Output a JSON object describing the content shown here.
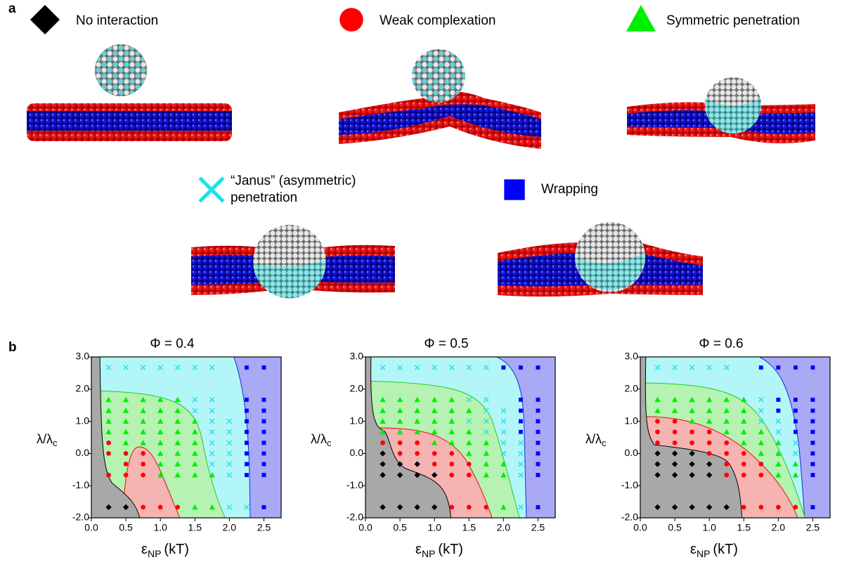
{
  "panel_labels": [
    "a",
    "b"
  ],
  "legend": [
    {
      "label": "No interaction",
      "marker": "diamond",
      "color": "#000000"
    },
    {
      "label": "Weak complexation",
      "marker": "circle",
      "color": "#ff0000"
    },
    {
      "label": "Symmetric penetration",
      "marker": "triangle",
      "color": "#00ee00"
    },
    {
      "label": "“Janus” (asymmetric) penetration",
      "marker": "x",
      "color": "#22e0e8"
    },
    {
      "label": "Wrapping",
      "marker": "square",
      "color": "#0000ff"
    }
  ],
  "chart_data": [
    {
      "type": "scatter",
      "title": "Φ = 0.4",
      "xlabel": {
        "symbol": "ε",
        "subscript": "NP",
        "unit": "(kT)"
      },
      "ylabel": {
        "symbol": "λ/λ",
        "subscript": "c"
      },
      "xlim": [
        0,
        2.75
      ],
      "ylim": [
        -2,
        3
      ],
      "xticks": [
        {
          "value": 0,
          "label": "0.0"
        },
        0.5,
        {
          "value": 1,
          "label": "1.0"
        },
        1.5,
        {
          "value": 2,
          "label": "2.0"
        },
        2.5
      ],
      "yticks": [
        {
          "value": 3,
          "label": "3.0"
        },
        {
          "value": 2,
          "label": "2.0"
        },
        {
          "value": 1,
          "label": "1.0"
        },
        {
          "value": 0,
          "label": "0.0"
        },
        {
          "value": -1,
          "label": "-1.0"
        },
        {
          "value": -2,
          "label": "-2.0"
        }
      ],
      "series": [
        {
          "marker": "diamond",
          "color": "#000000",
          "x": [
            0.25,
            0.5
          ],
          "values": [
            -1.67,
            -1.67
          ]
        },
        {
          "marker": "circle",
          "color": "#ff0000",
          "x": [
            0.25,
            0.25,
            0.5,
            0.75,
            0.5,
            0.75,
            0.25,
            0.5,
            0.75,
            0.75,
            1,
            1.25
          ],
          "values": [
            0.33,
            0,
            0,
            0,
            -0.33,
            -0.33,
            -0.67,
            -0.67,
            -0.67,
            -1.67,
            -1.67,
            -1.67
          ]
        },
        {
          "marker": "triangle",
          "color": "#00ee00",
          "x": [
            0.25,
            0.5,
            0.75,
            1,
            1.25,
            0.25,
            0.5,
            0.75,
            1,
            1.25,
            0.25,
            0.5,
            0.75,
            1,
            1.25,
            1.5,
            0.25,
            0.5,
            0.75,
            1,
            1.25,
            1.5,
            0.5,
            0.75,
            1,
            1.25,
            1.5,
            1,
            1.25,
            1.5,
            1,
            1.25,
            1.5,
            1,
            1.25,
            1.5,
            1.75,
            1.5,
            1.75
          ],
          "values": [
            1.67,
            1.67,
            1.67,
            1.67,
            1.67,
            1.33,
            1.33,
            1.33,
            1.33,
            1.33,
            1,
            1,
            1,
            1,
            1,
            1,
            0.67,
            0.67,
            0.67,
            0.67,
            0.67,
            0.67,
            0.33,
            0.33,
            0.33,
            0.33,
            0.33,
            0,
            0,
            0,
            -0.33,
            -0.33,
            -0.33,
            -0.67,
            -0.67,
            -0.67,
            -0.67,
            -1.67,
            -1.67
          ]
        },
        {
          "marker": "x",
          "color": "#22e0e8",
          "x": [
            0.25,
            0.5,
            0.75,
            1,
            1.25,
            1.5,
            1.75,
            1.5,
            1.75,
            1.5,
            1.75,
            1.75,
            2,
            1.75,
            2,
            1.75,
            2,
            1.75,
            2,
            1.75,
            2,
            2,
            2,
            2.25
          ],
          "values": [
            2.67,
            2.67,
            2.67,
            2.67,
            2.67,
            2.67,
            2.67,
            1.67,
            1.67,
            1.33,
            1.33,
            1,
            1,
            0.67,
            0.67,
            0.33,
            0.33,
            0,
            0,
            -0.33,
            -0.33,
            -0.67,
            -1.67,
            -1.67
          ]
        },
        {
          "marker": "square",
          "color": "#0000ff",
          "x": [
            2.25,
            2.5,
            2.25,
            2.5,
            2.25,
            2.5,
            2.25,
            2.5,
            2.25,
            2.5,
            2.25,
            2.5,
            2.25,
            2.5,
            2.25,
            2.5,
            2.25,
            2.5,
            2.5
          ],
          "values": [
            2.67,
            2.67,
            1.67,
            1.67,
            1.33,
            1.33,
            1,
            1,
            0.67,
            0.67,
            0.33,
            0.33,
            0,
            0,
            -0.33,
            -0.33,
            -0.67,
            -0.67,
            -1.67
          ]
        }
      ]
    },
    {
      "type": "scatter",
      "title": "Φ = 0.5",
      "xlabel": {
        "symbol": "ε",
        "subscript": "NP",
        "unit": "(kT)"
      },
      "ylabel": {
        "symbol": "λ/λ",
        "subscript": "c"
      },
      "xlim": [
        0,
        2.75
      ],
      "ylim": [
        -2,
        3
      ],
      "xticks": [
        {
          "value": 0,
          "label": "0.0"
        },
        0.5,
        {
          "value": 1,
          "label": "1.0"
        },
        1.5,
        {
          "value": 2,
          "label": "2.0"
        },
        2.5
      ],
      "yticks": [
        {
          "value": 3,
          "label": "3.0"
        },
        {
          "value": 2,
          "label": "2.0"
        },
        {
          "value": 1,
          "label": "1.0"
        },
        {
          "value": 0,
          "label": "0.0"
        },
        {
          "value": -1,
          "label": "-1.0"
        },
        {
          "value": -2,
          "label": "-2.0"
        }
      ],
      "series": [
        {
          "marker": "diamond",
          "color": "#000000",
          "x": [
            0.25,
            0.25,
            0.5,
            0.75,
            0.25,
            0.5,
            0.75,
            1,
            0.25,
            0.5,
            0.75,
            1
          ],
          "values": [
            0,
            -0.33,
            -0.33,
            -0.33,
            -0.67,
            -0.67,
            -0.67,
            -0.67,
            -1.67,
            -1.67,
            -1.67,
            -1.67
          ]
        },
        {
          "marker": "circle",
          "color": "#ff0000",
          "x": [
            0.25,
            0.5,
            0.75,
            0.5,
            0.75,
            1,
            1.25,
            1,
            1.25,
            1.5,
            1.25,
            1.5,
            1.25,
            1.5,
            1.75
          ],
          "values": [
            0.33,
            0.33,
            0.33,
            0,
            0,
            0,
            0,
            -0.33,
            -0.33,
            -0.33,
            -0.67,
            -0.67,
            -1.67,
            -1.67,
            -1.67
          ]
        },
        {
          "marker": "triangle",
          "color": "#00ee00",
          "x": [
            0.25,
            0.5,
            0.75,
            1,
            1.25,
            0.25,
            0.5,
            0.75,
            1,
            1.25,
            1.5,
            0.25,
            0.5,
            0.75,
            1,
            1.25,
            0.25,
            0.5,
            0.75,
            1,
            1.25,
            1.5,
            1,
            1.25,
            1.5,
            1.75,
            1.5,
            1.75,
            1.75,
            2,
            1.75,
            2,
            2
          ],
          "values": [
            1.67,
            1.67,
            1.67,
            1.67,
            1.67,
            1.33,
            1.33,
            1.33,
            1.33,
            1.33,
            1.33,
            1,
            1,
            1,
            1,
            1,
            0.67,
            0.67,
            0.67,
            0.67,
            0.67,
            0.67,
            0.33,
            0.33,
            0.33,
            0.33,
            0,
            0,
            -0.33,
            -0.33,
            -0.67,
            -0.67,
            -1.67
          ]
        },
        {
          "marker": "x",
          "color": "#22e0e8",
          "x": [
            0.25,
            0.5,
            0.75,
            1,
            1.25,
            1.5,
            1.75,
            1.5,
            1.75,
            1.75,
            2,
            1.5,
            1.75,
            2,
            1.75,
            2,
            2,
            2.25,
            2,
            2.25,
            2.25,
            2.25,
            2.25
          ],
          "values": [
            2.67,
            2.67,
            2.67,
            2.67,
            2.67,
            2.67,
            2.67,
            1.67,
            1.67,
            1.33,
            1.33,
            1,
            1,
            1,
            0.67,
            0.67,
            0.33,
            0.33,
            0,
            0,
            -0.33,
            -0.67,
            -1.67
          ]
        },
        {
          "marker": "square",
          "color": "#0000ff",
          "x": [
            2,
            2.25,
            2.5,
            2.25,
            2.5,
            2.25,
            2.5,
            2.25,
            2.5,
            2.25,
            2.5,
            2.5,
            2.5,
            2.5,
            2.5,
            2.5
          ],
          "values": [
            2.67,
            2.67,
            2.67,
            1.67,
            1.67,
            1.33,
            1.33,
            1,
            1,
            0.67,
            0.67,
            0.33,
            0,
            -0.33,
            -0.67,
            -1.67
          ]
        }
      ]
    },
    {
      "type": "scatter",
      "title": "Φ = 0.6",
      "xlabel": {
        "symbol": "ε",
        "subscript": "NP",
        "unit": "(kT)"
      },
      "ylabel": {
        "symbol": "λ/λ",
        "subscript": "c"
      },
      "xlim": [
        0,
        2.75
      ],
      "ylim": [
        -2,
        3
      ],
      "xticks": [
        {
          "value": 0,
          "label": "0.0"
        },
        0.5,
        {
          "value": 1,
          "label": "1.0"
        },
        1.5,
        {
          "value": 2,
          "label": "2.0"
        },
        2.5
      ],
      "yticks": [
        {
          "value": 3,
          "label": "3.0"
        },
        {
          "value": 2,
          "label": "2.0"
        },
        {
          "value": 1,
          "label": "1.0"
        },
        {
          "value": 0,
          "label": "0.0"
        },
        {
          "value": -1,
          "label": "-1.0"
        },
        {
          "value": -2,
          "label": "-2.0"
        }
      ],
      "series": [
        {
          "marker": "diamond",
          "color": "#000000",
          "x": [
            0.25,
            0.5,
            0.75,
            0.25,
            0.5,
            0.75,
            1,
            0.25,
            0.5,
            0.75,
            1,
            0.25,
            0.5,
            0.75,
            1,
            1.25
          ],
          "values": [
            0,
            0,
            0,
            -0.33,
            -0.33,
            -0.33,
            -0.33,
            -0.67,
            -0.67,
            -0.67,
            -0.67,
            -1.67,
            -1.67,
            -1.67,
            -1.67,
            -1.67
          ]
        },
        {
          "marker": "circle",
          "color": "#ff0000",
          "x": [
            0.25,
            0.5,
            0.25,
            0.5,
            0.75,
            1,
            0.25,
            0.5,
            0.75,
            1,
            1.25,
            1,
            1.25,
            1.5,
            1.25,
            1.5,
            1.75,
            1.25,
            1.5,
            1.75,
            1.5,
            1.75,
            2,
            2.25
          ],
          "values": [
            1,
            1,
            0.67,
            0.67,
            0.67,
            0.67,
            0.33,
            0.33,
            0.33,
            0.33,
            0.33,
            0,
            0,
            0,
            -0.33,
            -0.33,
            -0.33,
            -0.67,
            -0.67,
            -0.67,
            -1.67,
            -1.67,
            -1.67,
            -1.67
          ]
        },
        {
          "marker": "triangle",
          "color": "#00ee00",
          "x": [
            0.25,
            0.5,
            0.75,
            1,
            1.25,
            1.5,
            0.25,
            0.5,
            0.75,
            1,
            1.25,
            1.5,
            0.75,
            1,
            1.25,
            1.5,
            1.25,
            1.5,
            1.75,
            1.5,
            1.75,
            2,
            1.75,
            2,
            2,
            2.25,
            2,
            2.25
          ],
          "values": [
            1.67,
            1.67,
            1.67,
            1.67,
            1.67,
            1.67,
            1.33,
            1.33,
            1.33,
            1.33,
            1.33,
            1.33,
            1,
            1,
            1,
            1,
            0.67,
            0.67,
            0.67,
            0.33,
            0.33,
            0.33,
            0,
            0,
            -0.33,
            -0.33,
            -0.67,
            -0.67
          ]
        },
        {
          "marker": "x",
          "color": "#22e0e8",
          "x": [
            0.25,
            0.5,
            0.75,
            1,
            1.25,
            1.75,
            1.75,
            1.75,
            2,
            2,
            2.25,
            2.25
          ],
          "values": [
            2.67,
            2.67,
            2.67,
            2.67,
            2.67,
            1.67,
            1.33,
            1,
            1,
            0.67,
            0.33,
            0
          ]
        },
        {
          "marker": "square",
          "color": "#0000ff",
          "x": [
            1.75,
            2,
            2.25,
            2.5,
            2,
            2.25,
            2.5,
            2,
            2.25,
            2.5,
            2.25,
            2.5,
            2.25,
            2.5,
            2.5,
            2.5,
            2.5,
            2.5,
            2.5
          ],
          "values": [
            2.67,
            2.67,
            2.67,
            2.67,
            1.67,
            1.67,
            1.67,
            1.33,
            1.33,
            1.33,
            1,
            1,
            0.67,
            0.67,
            0.33,
            0,
            -0.33,
            -0.67,
            -1.67
          ]
        }
      ]
    }
  ]
}
